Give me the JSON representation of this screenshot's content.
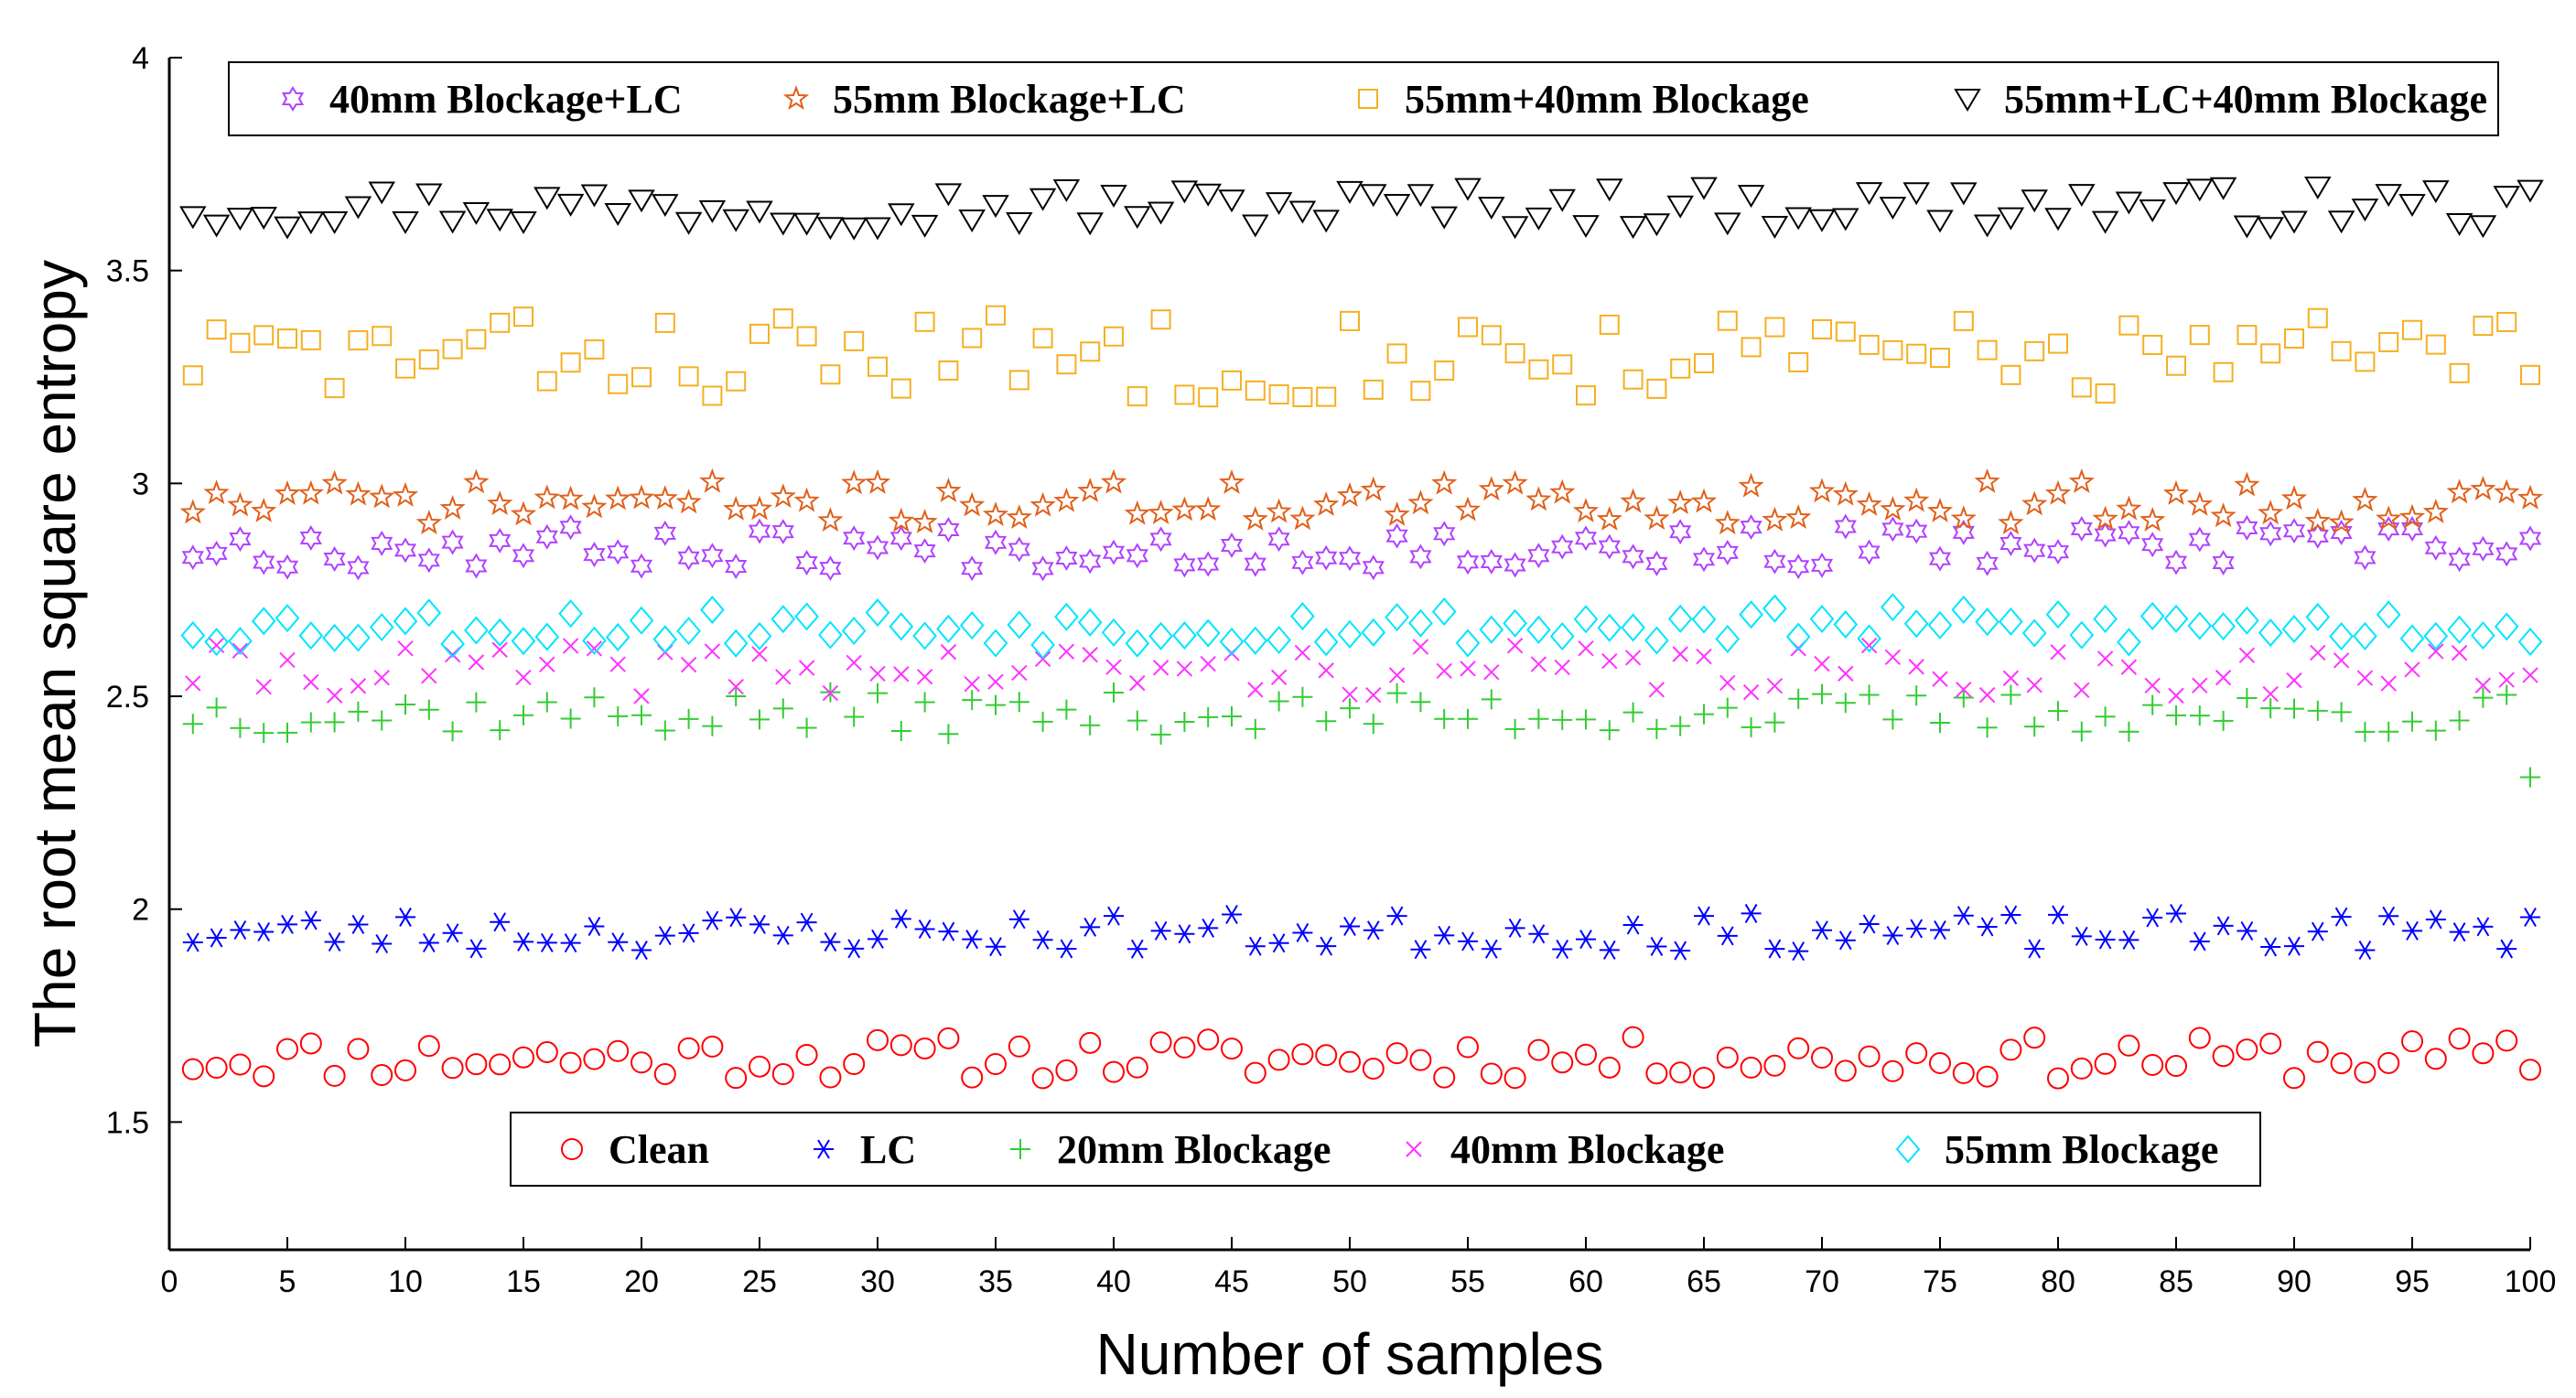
{
  "chart_data": {
    "type": "scatter",
    "xlabel": "Number of samples",
    "ylabel": "The root mean square entropy",
    "xlim": [
      0,
      100
    ],
    "ylim": [
      1.2,
      4
    ],
    "xticks": [
      0,
      5,
      10,
      15,
      20,
      25,
      30,
      35,
      40,
      45,
      50,
      55,
      60,
      65,
      70,
      75,
      80,
      85,
      90,
      95,
      100
    ],
    "yticks": [
      1.5,
      2,
      2.5,
      3,
      3.5,
      4
    ],
    "ytick_labels": [
      "1.5",
      "2",
      "2.5",
      "3",
      "3.5",
      "4"
    ],
    "legend_top": [
      "40mm Blockage+LC",
      "55mm Blockage+LC",
      "55mm+40mm Blockage",
      "55mm+LC+40mm Blockage"
    ],
    "legend_bottom": [
      "Clean",
      "LC",
      "20mm Blockage",
      "40mm Blockage",
      "55mm Blockage"
    ],
    "series": [
      {
        "name": "Clean",
        "marker": "circle",
        "color": "#ff0000",
        "base": 1.65,
        "amplitude": 0.05,
        "seed": 11
      },
      {
        "name": "LC",
        "marker": "asterisk",
        "color": "#0000ff",
        "base": 1.945,
        "amplitude": 0.045,
        "seed": 23
      },
      {
        "name": "20mm Blockage",
        "marker": "plus",
        "color": "#33cc33",
        "base": 2.46,
        "amplitude": 0.05,
        "seed": 37,
        "overrides": {
          "100": 2.31
        }
      },
      {
        "name": "40mm Blockage",
        "marker": "x",
        "color": "#ff33ff",
        "base": 2.56,
        "amplitude": 0.06,
        "seed": 41
      },
      {
        "name": "55mm Blockage",
        "marker": "diamond",
        "color": "#00e5ff",
        "base": 2.665,
        "amplitude": 0.045,
        "seed": 53
      },
      {
        "name": "40mm Blockage+LC",
        "marker": "hexagram",
        "color": "#b040ff",
        "base": 2.85,
        "amplitude": 0.05,
        "seed": 67
      },
      {
        "name": "55mm Blockage+LC",
        "marker": "pentagram",
        "color": "#e0601a",
        "base": 2.955,
        "amplitude": 0.05,
        "seed": 71
      },
      {
        "name": "55mm+40mm Blockage",
        "marker": "square",
        "color": "#f5b022",
        "base": 3.3,
        "amplitude": 0.1,
        "seed": 83
      },
      {
        "name": "55mm+LC+40mm Blockage",
        "marker": "triangle-down",
        "color": "#000000",
        "base": 3.65,
        "amplitude": 0.05,
        "seed": 97
      }
    ]
  }
}
